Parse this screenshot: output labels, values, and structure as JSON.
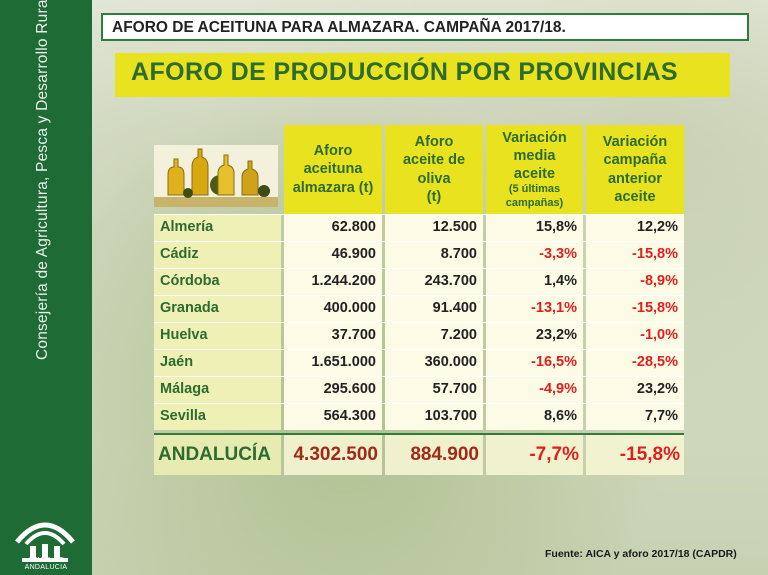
{
  "sidebar": {
    "vertical_text": "Consejería de Agricultura, Pesca y Desarrollo Rural",
    "logo_text": "JUNTA DE ANDALUCIA",
    "logo_icon": "junta-andalucia-logo-icon"
  },
  "title": "AFORO DE ACEITUNA PARA ALMAZARA. CAMPAÑA 2017/18.",
  "subtitle": "AFORO DE PRODUCCIÓN POR PROVINCIAS",
  "table": {
    "icon": "olive-oil-bottles-icon",
    "headers": [
      [
        "Aforo",
        "aceituna",
        "almazara (t)"
      ],
      [
        "Aforo",
        "aceite de",
        "oliva",
        "(t)"
      ],
      [
        "Variación",
        "media",
        "aceite",
        "(5 últimas",
        "campañas)"
      ],
      [
        "Variación",
        "campaña",
        "anterior",
        "aceite"
      ]
    ],
    "rows": [
      {
        "province": "Almería",
        "aceituna": "62.800",
        "aceite": "12.500",
        "var_media": "15,8%",
        "var_anterior": "12,2%"
      },
      {
        "province": "Cádiz",
        "aceituna": "46.900",
        "aceite": "8.700",
        "var_media": "-3,3%",
        "var_anterior": "-15,8%"
      },
      {
        "province": "Córdoba",
        "aceituna": "1.244.200",
        "aceite": "243.700",
        "var_media": "1,4%",
        "var_anterior": "-8,9%"
      },
      {
        "province": "Granada",
        "aceituna": "400.000",
        "aceite": "91.400",
        "var_media": "-13,1%",
        "var_anterior": "-15,8%"
      },
      {
        "province": "Huelva",
        "aceituna": "37.700",
        "aceite": "7.200",
        "var_media": "23,2%",
        "var_anterior": "-1,0%"
      },
      {
        "province": "Jaén",
        "aceituna": "1.651.000",
        "aceite": "360.000",
        "var_media": "-16,5%",
        "var_anterior": "-28,5%"
      },
      {
        "province": "Málaga",
        "aceituna": "295.600",
        "aceite": "57.700",
        "var_media": "-4,9%",
        "var_anterior": "23,2%"
      },
      {
        "province": "Sevilla",
        "aceituna": "564.300",
        "aceite": "103.700",
        "var_media": "8,6%",
        "var_anterior": "7,7%"
      }
    ],
    "total": {
      "province": "ANDALUCÍA",
      "aceituna": "4.302.500",
      "aceite": "884.900",
      "var_media": "-7,7%",
      "var_anterior": "-15,8%"
    }
  },
  "source": "Fuente: AICA y aforo 2017/18 (CAPDR)",
  "colors": {
    "green": "#2d6b2f",
    "yellow": "#e8e31e",
    "negative_red": "#e0201e",
    "sidebar": "#1f6b35"
  }
}
